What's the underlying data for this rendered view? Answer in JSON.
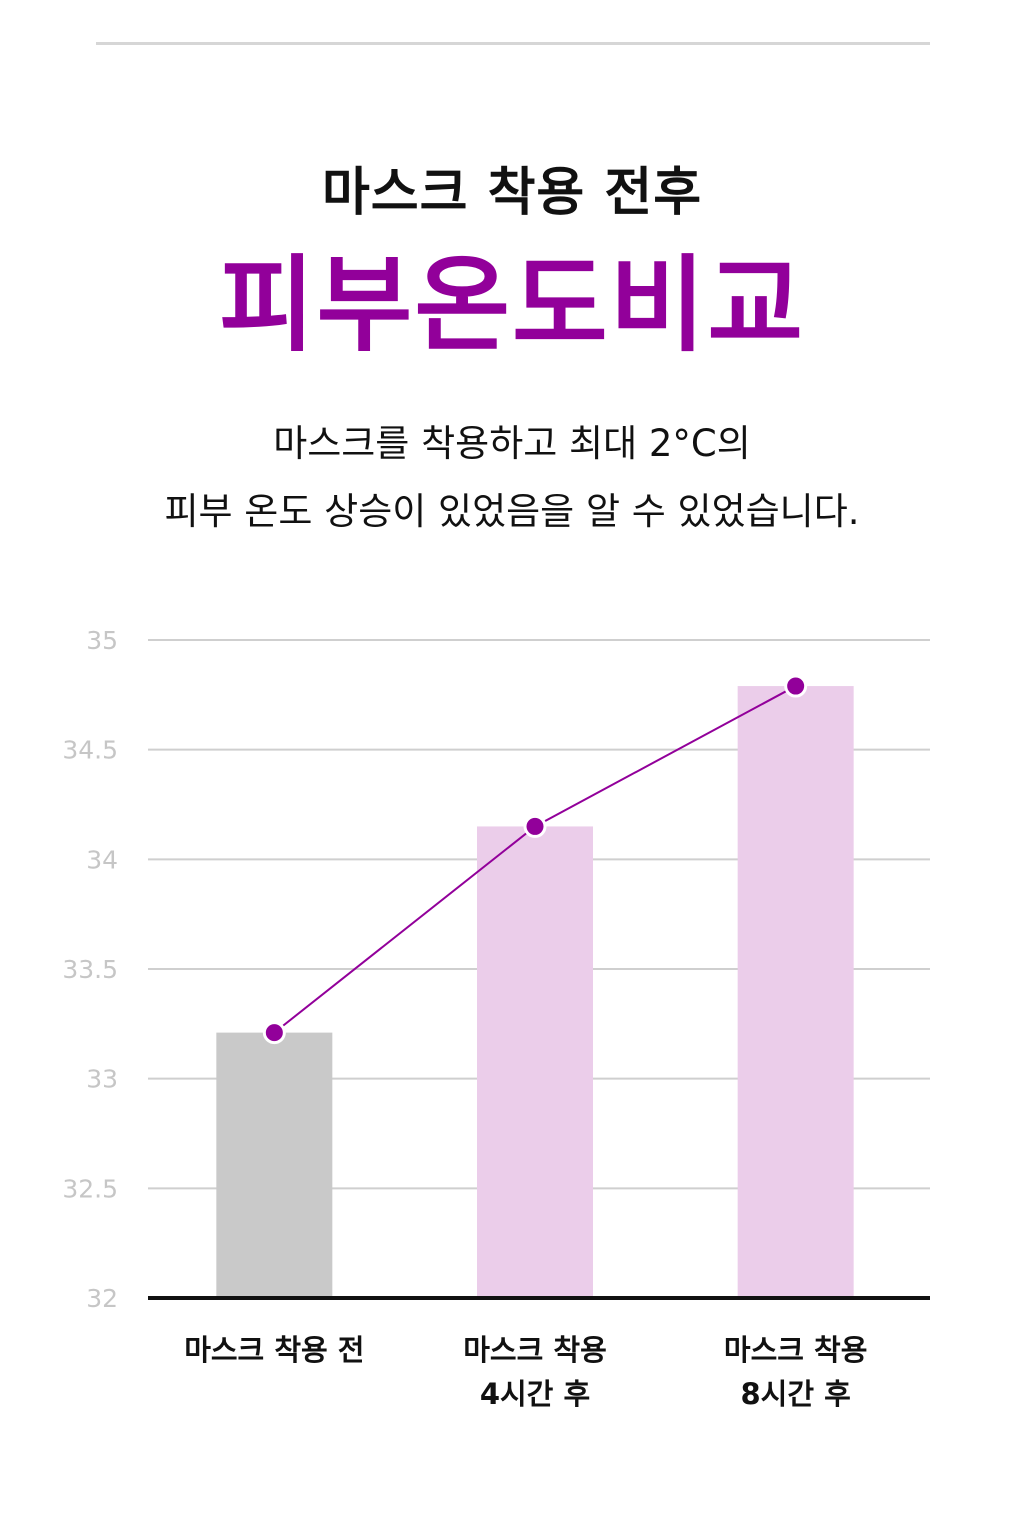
{
  "header": {
    "subtitle": "마스크 착용 전후",
    "title": "피부온도비교"
  },
  "description": {
    "line1": "마스크를 착용하고 최대 2°C의",
    "line2": "피부 온도 상승이 있었음을 알 수 있었습니다."
  },
  "chart_data": {
    "type": "bar",
    "categories": [
      [
        "마스크 착용 전"
      ],
      [
        "마스크 착용",
        "4시간 후"
      ],
      [
        "마스크 착용",
        "8시간 후"
      ]
    ],
    "values": [
      33.21,
      34.15,
      34.79
    ],
    "line_overlay": true,
    "ylim": [
      32,
      35
    ],
    "yticks": [
      "32",
      "32.5",
      "33",
      "33.5",
      "34",
      "34.5",
      "35"
    ],
    "grid": true,
    "colors": {
      "bars": [
        "#c9c9c9",
        "#ebcdea",
        "#ebcdea"
      ],
      "line": "#92009a",
      "marker": "#92009a",
      "grid": "#cfcfcf",
      "axis": "#111111"
    }
  }
}
